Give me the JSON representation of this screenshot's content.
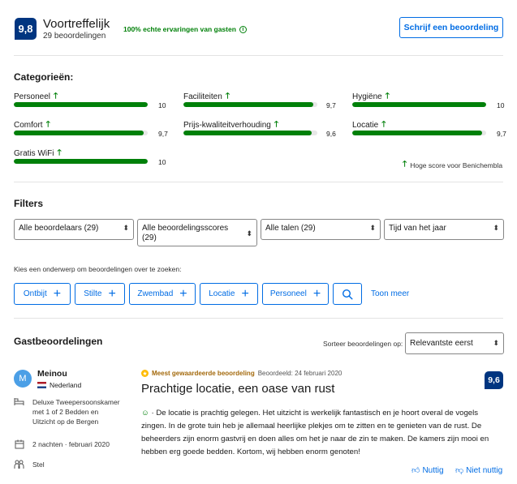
{
  "header": {
    "score": "9,8",
    "rating_word": "Voortreffelijk",
    "review_count": "29 beoordelingen",
    "verified_text": "100% echte ervaringen van gasten",
    "write_review_label": "Schrijf een beoordeling"
  },
  "categories": {
    "title": "Categorieën:",
    "items": [
      {
        "label": "Personeel",
        "value": "10",
        "fraction": 1.0
      },
      {
        "label": "Faciliteiten",
        "value": "9,7",
        "fraction": 0.97
      },
      {
        "label": "Hygiëne",
        "value": "10",
        "fraction": 1.0
      },
      {
        "label": "Comfort",
        "value": "9,7",
        "fraction": 0.97
      },
      {
        "label": "Prijs-kwaliteitverhouding",
        "value": "9,6",
        "fraction": 0.96
      },
      {
        "label": "Locatie",
        "value": "9,7",
        "fraction": 0.97
      },
      {
        "label": "Gratis WiFi",
        "value": "10",
        "fraction": 1.0
      }
    ],
    "high_score_note": "Hoge score voor Benichembla"
  },
  "filters": {
    "title": "Filters",
    "reviewers": "Alle beoordelaars (29)",
    "scores": "Alle beoordelingsscores (29)",
    "languages": "Alle talen (29)",
    "time_of_year": "Tijd van het jaar",
    "topics_prompt": "Kies een onderwerp om beoordelingen over te zoeken:",
    "topics": [
      "Ontbijt",
      "Stilte",
      "Zwembad",
      "Locatie",
      "Personeel"
    ],
    "show_more": "Toon meer"
  },
  "guest_reviews": {
    "title": "Gastbeoordelingen",
    "sort_label": "Sorteer beoordelingen op:",
    "sort_value": "Relevantste eerst"
  },
  "review": {
    "name": "Meinou",
    "avatar_letter": "M",
    "country": "Nederland",
    "room": "Deluxe Tweepersoonskamer met 1 of 2 Bedden en Uitzicht op de Bergen",
    "stay": "2 nachten · februari 2020",
    "traveler_type": "Stel",
    "badge": "Meest gewaardeerde beoordeling",
    "date": "Beoordeeld: 24 februari 2020",
    "title": "Prachtige locatie, een oase van rust",
    "body": "· De locatie is prachtig gelegen. Het uitzicht is werkelijk fantastisch en je hoort overal de vogels zingen. In de grote tuin heb je allemaal heerlijke plekjes om te zitten en te genieten van de rust. De beheerders zijn enorm gastvrij en doen alles om het je naar de zin te maken. De kamers zijn mooi en hebben erg goede bedden. Kortom, wij hebben enorm genoten!",
    "score": "9,6",
    "helpful": "Nuttig",
    "not_helpful": "Niet nuttig"
  }
}
